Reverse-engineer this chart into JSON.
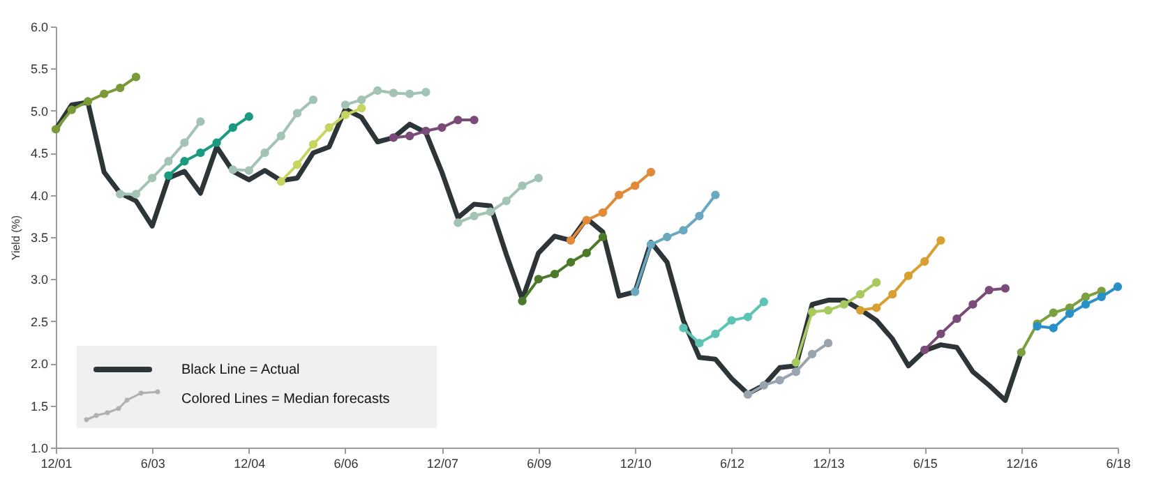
{
  "chart_data": {
    "type": "line",
    "ylabel": "Yield (%)",
    "marker": "circle",
    "legend": "bottom left",
    "grid": false,
    "annotations": [
      "Colored Lines = Median forecasts"
    ],
    "xlim": [
      "2001-12",
      "2018-06"
    ],
    "xticks": [
      {
        "value": "2001-12",
        "label": "12/01"
      },
      {
        "value": "2003-06",
        "label": "6/03"
      },
      {
        "value": "2004-12",
        "label": "12/04"
      },
      {
        "value": "2006-06",
        "label": "6/06"
      },
      {
        "value": "2007-12",
        "label": "12/07"
      },
      {
        "value": "2009-06",
        "label": "6/09"
      },
      {
        "value": "2010-12",
        "label": "12/10"
      },
      {
        "value": "2012-06",
        "label": "6/12"
      },
      {
        "value": "2013-12",
        "label": "12/13"
      },
      {
        "value": "2015-06",
        "label": "6/15"
      },
      {
        "value": "2016-12",
        "label": "12/16"
      },
      {
        "value": "2018-06",
        "label": "6/18"
      }
    ],
    "ylim": [
      1,
      6
    ],
    "yticks": [
      {
        "value": 1,
        "label": "1.0"
      },
      {
        "value": 1.5,
        "label": "1.5"
      },
      {
        "value": 2,
        "label": "2.0"
      },
      {
        "value": 2.5,
        "label": "2.5"
      },
      {
        "value": 3,
        "label": "3.0"
      },
      {
        "value": 3.5,
        "label": "3.5"
      },
      {
        "value": 4,
        "label": "4.0"
      },
      {
        "value": 4.5,
        "label": "4.5"
      },
      {
        "value": 5,
        "label": "5.0"
      },
      {
        "value": 5.5,
        "label": "5.5"
      },
      {
        "value": 6,
        "label": "6.0"
      }
    ],
    "series": [
      {
        "name": "Black Line = Actual",
        "color": "#2d3538",
        "marker": "none",
        "x": [
          "2001-12",
          "2002-03",
          "2002-06",
          "2002-09",
          "2002-12",
          "2003-03",
          "2003-06",
          "2003-09",
          "2003-12",
          "2004-03",
          "2004-06",
          "2004-09",
          "2004-12",
          "2005-03",
          "2005-06",
          "2005-09",
          "2005-12",
          "2006-03",
          "2006-06",
          "2006-09",
          "2006-12",
          "2007-03",
          "2007-06",
          "2007-09",
          "2007-12",
          "2008-03",
          "2008-06",
          "2008-09",
          "2008-12",
          "2009-03",
          "2009-06",
          "2009-09",
          "2009-12",
          "2010-03",
          "2010-06",
          "2010-09",
          "2010-12",
          "2011-03",
          "2011-06",
          "2011-09",
          "2011-12",
          "2012-03",
          "2012-06",
          "2012-09",
          "2012-12",
          "2013-03",
          "2013-06",
          "2013-09",
          "2013-12",
          "2014-03",
          "2014-06",
          "2014-09",
          "2014-12",
          "2015-03",
          "2015-06",
          "2015-09",
          "2015-12",
          "2016-03",
          "2016-06",
          "2016-09",
          "2016-12"
        ],
        "values": [
          4.78,
          5.07,
          5.1,
          4.27,
          4.02,
          3.93,
          3.63,
          4.2,
          4.28,
          4.02,
          4.57,
          4.28,
          4.18,
          4.29,
          4.17,
          4.2,
          4.5,
          4.57,
          5.02,
          4.92,
          4.63,
          4.68,
          4.84,
          4.74,
          4.27,
          3.73,
          3.89,
          3.87,
          3.29,
          2.76,
          3.31,
          3.51,
          3.46,
          3.72,
          3.56,
          2.8,
          2.85,
          3.44,
          3.2,
          2.51,
          2.07,
          2.05,
          1.82,
          1.64,
          1.74,
          1.95,
          1.97,
          2.7,
          2.75,
          2.75,
          2.64,
          2.51,
          2.29,
          1.97,
          2.15,
          2.22,
          2.19,
          1.9,
          1.74,
          1.56,
          2.13
        ]
      },
      {
        "color": "#7a9a3a",
        "x": [
          "2001-12",
          "2002-03",
          "2002-06",
          "2002-09",
          "2002-12",
          "2003-03"
        ],
        "values": [
          4.78,
          5.01,
          5.11,
          5.2,
          5.27,
          5.4
        ]
      },
      {
        "color": "#a3c4b4",
        "x": [
          "2002-12",
          "2003-03",
          "2003-06",
          "2003-09",
          "2003-12",
          "2004-03"
        ],
        "values": [
          4.01,
          4.01,
          4.2,
          4.4,
          4.62,
          4.87
        ]
      },
      {
        "color": "#1a9a80",
        "x": [
          "2003-09",
          "2003-12",
          "2004-03",
          "2004-06",
          "2004-09",
          "2004-12"
        ],
        "values": [
          4.23,
          4.4,
          4.5,
          4.62,
          4.8,
          4.93
        ]
      },
      {
        "color": "#a3c4b4",
        "x": [
          "2004-09",
          "2004-12",
          "2005-03",
          "2005-06",
          "2005-09",
          "2005-12"
        ],
        "values": [
          4.3,
          4.29,
          4.5,
          4.7,
          4.97,
          5.13
        ]
      },
      {
        "color": "#c8d460",
        "x": [
          "2005-06",
          "2005-09",
          "2005-12",
          "2006-03",
          "2006-06",
          "2006-09"
        ],
        "values": [
          4.16,
          4.36,
          4.6,
          4.8,
          4.95,
          5.03
        ]
      },
      {
        "color": "#a3c4b4",
        "x": [
          "2006-06",
          "2006-09",
          "2006-12",
          "2007-03",
          "2007-06",
          "2007-09"
        ],
        "values": [
          5.07,
          5.13,
          5.24,
          5.21,
          5.2,
          5.22
        ]
      },
      {
        "color": "#7a4a78",
        "x": [
          "2007-03",
          "2007-06",
          "2007-09",
          "2007-12",
          "2008-03",
          "2008-06"
        ],
        "values": [
          4.68,
          4.7,
          4.76,
          4.8,
          4.89,
          4.89
        ]
      },
      {
        "color": "#a3c4b4",
        "x": [
          "2008-03",
          "2008-06",
          "2008-09",
          "2008-12",
          "2009-03",
          "2009-06"
        ],
        "values": [
          3.67,
          3.75,
          3.8,
          3.93,
          4.11,
          4.2
        ]
      },
      {
        "color": "#4a7a2a",
        "x": [
          "2009-03",
          "2009-06",
          "2009-09",
          "2009-12",
          "2010-03",
          "2010-06"
        ],
        "values": [
          2.74,
          3.0,
          3.06,
          3.2,
          3.31,
          3.5
        ]
      },
      {
        "color": "#e08a3a",
        "x": [
          "2009-12",
          "2010-03",
          "2010-06",
          "2010-09",
          "2010-12",
          "2011-03"
        ],
        "values": [
          3.46,
          3.7,
          3.79,
          4.0,
          4.11,
          4.27
        ]
      },
      {
        "color": "#6aa8c0",
        "x": [
          "2010-12",
          "2011-03",
          "2011-06",
          "2011-09",
          "2011-12",
          "2012-03"
        ],
        "values": [
          2.85,
          3.41,
          3.5,
          3.58,
          3.75,
          4.0
        ]
      },
      {
        "color": "#5ec4b4",
        "x": [
          "2011-09",
          "2011-12",
          "2012-03",
          "2012-06",
          "2012-09",
          "2012-12"
        ],
        "values": [
          2.42,
          2.24,
          2.35,
          2.51,
          2.55,
          2.73
        ]
      },
      {
        "color": "#9aa4b0",
        "x": [
          "2012-09",
          "2012-12",
          "2013-03",
          "2013-06",
          "2013-09",
          "2013-12"
        ],
        "values": [
          1.63,
          1.74,
          1.8,
          1.9,
          2.11,
          2.24
        ]
      },
      {
        "color": "#a8c860",
        "x": [
          "2013-06",
          "2013-09",
          "2013-12",
          "2014-03",
          "2014-06",
          "2014-09"
        ],
        "values": [
          2.01,
          2.61,
          2.63,
          2.7,
          2.82,
          2.96
        ]
      },
      {
        "color": "#d8a030",
        "x": [
          "2014-06",
          "2014-09",
          "2014-12",
          "2015-03",
          "2015-06",
          "2015-09"
        ],
        "values": [
          2.63,
          2.66,
          2.82,
          3.04,
          3.21,
          3.46
        ]
      },
      {
        "color": "#7a4a78",
        "x": [
          "2015-06",
          "2015-09",
          "2015-12",
          "2016-03",
          "2016-06",
          "2016-09"
        ],
        "values": [
          2.16,
          2.35,
          2.53,
          2.7,
          2.87,
          2.89
        ]
      },
      {
        "color": "#7aa040",
        "x": [
          "2016-12",
          "2017-03",
          "2017-06",
          "2017-09",
          "2017-12",
          "2018-03"
        ],
        "values": [
          2.13,
          2.47,
          2.6,
          2.66,
          2.79,
          2.86
        ]
      },
      {
        "color": "#2a90c8",
        "x": [
          "2017-03",
          "2017-06",
          "2017-09",
          "2017-12",
          "2018-03",
          "2018-06"
        ],
        "values": [
          2.44,
          2.42,
          2.59,
          2.7,
          2.79,
          2.91
        ]
      }
    ]
  }
}
